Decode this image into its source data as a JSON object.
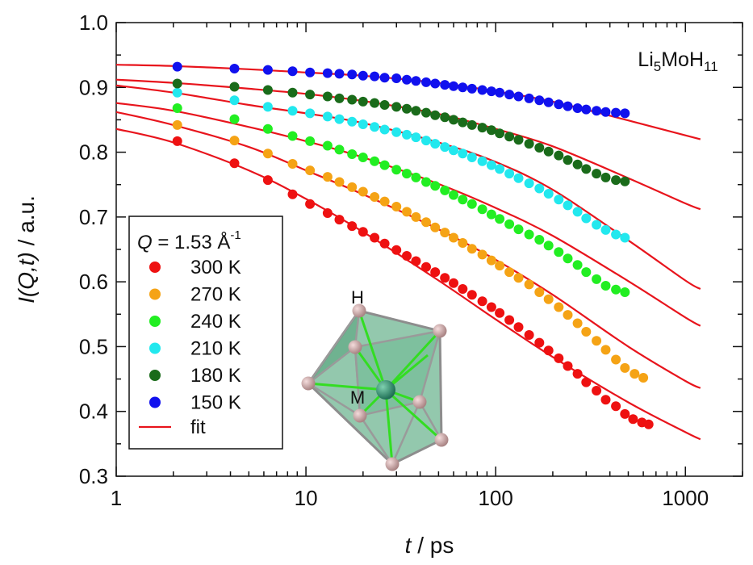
{
  "chart_data": {
    "type": "scatter",
    "xscale": "log",
    "xlim": [
      1,
      2000
    ],
    "ylim": [
      0.3,
      1.0
    ],
    "x_ticks": [
      "1",
      "10",
      "100",
      "1000"
    ],
    "y_ticks": [
      "0.3",
      "0.4",
      "0.5",
      "0.6",
      "0.7",
      "0.8",
      "0.9",
      "1.0"
    ],
    "xlabel": {
      "var": "t",
      "unit": " / ps"
    },
    "ylabel": {
      "var": "I(Q,t)",
      "unit": " / a.u."
    },
    "compound": {
      "prefix": "Li",
      "sub1": "5",
      "mid": "MoH",
      "sub2": "11"
    },
    "legend": {
      "q_var": "Q",
      "q_value": " = 1.53 Å",
      "q_exp": "-1",
      "fit_label": "fit",
      "fit_color": "#e8141c"
    },
    "inset_labels": {
      "top": "H",
      "center": "M"
    },
    "series": [
      {
        "name": "300 K",
        "color": "#ee1111",
        "points": [
          [
            2.1,
            0.817
          ],
          [
            4.2,
            0.783
          ],
          [
            6.3,
            0.757
          ],
          [
            8.5,
            0.735
          ],
          [
            10.5,
            0.72
          ],
          [
            13,
            0.706
          ],
          [
            15,
            0.696
          ],
          [
            17.5,
            0.686
          ],
          [
            20,
            0.677
          ],
          [
            23,
            0.668
          ],
          [
            26,
            0.659
          ],
          [
            30,
            0.649
          ],
          [
            34,
            0.64
          ],
          [
            38,
            0.632
          ],
          [
            43,
            0.623
          ],
          [
            48,
            0.615
          ],
          [
            54,
            0.606
          ],
          [
            60,
            0.598
          ],
          [
            67,
            0.589
          ],
          [
            75,
            0.58
          ],
          [
            85,
            0.57
          ],
          [
            95,
            0.561
          ],
          [
            105,
            0.552
          ],
          [
            118,
            0.541
          ],
          [
            132,
            0.53
          ],
          [
            150,
            0.518
          ],
          [
            170,
            0.506
          ],
          [
            190,
            0.494
          ],
          [
            215,
            0.482
          ],
          [
            240,
            0.47
          ],
          [
            270,
            0.458
          ],
          [
            300,
            0.445
          ],
          [
            340,
            0.432
          ],
          [
            380,
            0.418
          ],
          [
            430,
            0.408
          ],
          [
            480,
            0.396
          ],
          [
            530,
            0.388
          ],
          [
            590,
            0.383
          ],
          [
            640,
            0.38
          ]
        ]
      },
      {
        "name": "270 K",
        "color": "#f5a315",
        "points": [
          [
            2.1,
            0.842
          ],
          [
            4.2,
            0.818
          ],
          [
            6.3,
            0.798
          ],
          [
            8.5,
            0.782
          ],
          [
            10.5,
            0.772
          ],
          [
            13,
            0.762
          ],
          [
            15,
            0.754
          ],
          [
            17.5,
            0.746
          ],
          [
            20,
            0.739
          ],
          [
            23,
            0.731
          ],
          [
            26,
            0.724
          ],
          [
            30,
            0.716
          ],
          [
            34,
            0.708
          ],
          [
            38,
            0.7
          ],
          [
            43,
            0.692
          ],
          [
            48,
            0.684
          ],
          [
            54,
            0.676
          ],
          [
            60,
            0.668
          ],
          [
            67,
            0.66
          ],
          [
            75,
            0.651
          ],
          [
            85,
            0.642
          ],
          [
            95,
            0.633
          ],
          [
            105,
            0.625
          ],
          [
            118,
            0.615
          ],
          [
            132,
            0.606
          ],
          [
            150,
            0.596
          ],
          [
            170,
            0.584
          ],
          [
            190,
            0.573
          ],
          [
            215,
            0.561
          ],
          [
            240,
            0.549
          ],
          [
            270,
            0.536
          ],
          [
            300,
            0.523
          ],
          [
            340,
            0.509
          ],
          [
            380,
            0.495
          ],
          [
            430,
            0.48
          ],
          [
            480,
            0.467
          ],
          [
            540,
            0.458
          ],
          [
            600,
            0.452
          ]
        ]
      },
      {
        "name": "240 K",
        "color": "#22ee22",
        "points": [
          [
            2.1,
            0.868
          ],
          [
            4.2,
            0.851
          ],
          [
            6.3,
            0.836
          ],
          [
            8.5,
            0.825
          ],
          [
            10.5,
            0.817
          ],
          [
            13,
            0.81
          ],
          [
            15,
            0.804
          ],
          [
            17.5,
            0.797
          ],
          [
            20,
            0.792
          ],
          [
            23,
            0.786
          ],
          [
            26,
            0.78
          ],
          [
            30,
            0.773
          ],
          [
            34,
            0.767
          ],
          [
            38,
            0.761
          ],
          [
            43,
            0.754
          ],
          [
            48,
            0.748
          ],
          [
            54,
            0.741
          ],
          [
            60,
            0.734
          ],
          [
            67,
            0.727
          ],
          [
            75,
            0.72
          ],
          [
            85,
            0.712
          ],
          [
            95,
            0.704
          ],
          [
            105,
            0.697
          ],
          [
            118,
            0.689
          ],
          [
            132,
            0.681
          ],
          [
            150,
            0.673
          ],
          [
            170,
            0.665
          ],
          [
            190,
            0.656
          ],
          [
            215,
            0.646
          ],
          [
            240,
            0.636
          ],
          [
            270,
            0.626
          ],
          [
            300,
            0.615
          ],
          [
            340,
            0.604
          ],
          [
            380,
            0.594
          ],
          [
            430,
            0.588
          ],
          [
            480,
            0.584
          ]
        ]
      },
      {
        "name": "210 K",
        "color": "#22e8ee",
        "points": [
          [
            2.1,
            0.892
          ],
          [
            4.2,
            0.88
          ],
          [
            6.3,
            0.87
          ],
          [
            8.5,
            0.864
          ],
          [
            10.5,
            0.86
          ],
          [
            13,
            0.855
          ],
          [
            15,
            0.851
          ],
          [
            17.5,
            0.847
          ],
          [
            20,
            0.843
          ],
          [
            23,
            0.839
          ],
          [
            26,
            0.835
          ],
          [
            30,
            0.831
          ],
          [
            34,
            0.827
          ],
          [
            38,
            0.823
          ],
          [
            43,
            0.818
          ],
          [
            48,
            0.813
          ],
          [
            54,
            0.808
          ],
          [
            60,
            0.803
          ],
          [
            67,
            0.798
          ],
          [
            75,
            0.792
          ],
          [
            85,
            0.786
          ],
          [
            95,
            0.78
          ],
          [
            105,
            0.774
          ],
          [
            118,
            0.767
          ],
          [
            132,
            0.76
          ],
          [
            150,
            0.752
          ],
          [
            170,
            0.744
          ],
          [
            190,
            0.736
          ],
          [
            215,
            0.727
          ],
          [
            240,
            0.718
          ],
          [
            270,
            0.708
          ],
          [
            300,
            0.698
          ],
          [
            340,
            0.688
          ],
          [
            380,
            0.68
          ],
          [
            430,
            0.673
          ],
          [
            480,
            0.668
          ]
        ]
      },
      {
        "name": "180 K",
        "color": "#1a6b1a",
        "points": [
          [
            2.1,
            0.906
          ],
          [
            4.2,
            0.901
          ],
          [
            6.3,
            0.896
          ],
          [
            8.5,
            0.892
          ],
          [
            10.5,
            0.889
          ],
          [
            13,
            0.886
          ],
          [
            15,
            0.883
          ],
          [
            17.5,
            0.881
          ],
          [
            20,
            0.878
          ],
          [
            23,
            0.876
          ],
          [
            26,
            0.873
          ],
          [
            30,
            0.87
          ],
          [
            34,
            0.867
          ],
          [
            38,
            0.864
          ],
          [
            43,
            0.861
          ],
          [
            48,
            0.857
          ],
          [
            54,
            0.854
          ],
          [
            60,
            0.85
          ],
          [
            67,
            0.846
          ],
          [
            75,
            0.842
          ],
          [
            85,
            0.838
          ],
          [
            95,
            0.834
          ],
          [
            105,
            0.829
          ],
          [
            118,
            0.824
          ],
          [
            132,
            0.819
          ],
          [
            150,
            0.813
          ],
          [
            170,
            0.807
          ],
          [
            190,
            0.801
          ],
          [
            215,
            0.795
          ],
          [
            240,
            0.788
          ],
          [
            270,
            0.781
          ],
          [
            300,
            0.774
          ],
          [
            340,
            0.767
          ],
          [
            380,
            0.761
          ],
          [
            430,
            0.757
          ],
          [
            480,
            0.755
          ]
        ]
      },
      {
        "name": "150 K",
        "color": "#1111ee",
        "points": [
          [
            2.1,
            0.932
          ],
          [
            4.2,
            0.929
          ],
          [
            6.3,
            0.927
          ],
          [
            8.5,
            0.925
          ],
          [
            10.5,
            0.923
          ],
          [
            13,
            0.922
          ],
          [
            15,
            0.921
          ],
          [
            17.5,
            0.92
          ],
          [
            20,
            0.918
          ],
          [
            23,
            0.917
          ],
          [
            26,
            0.915
          ],
          [
            30,
            0.914
          ],
          [
            34,
            0.912
          ],
          [
            38,
            0.91
          ],
          [
            43,
            0.908
          ],
          [
            48,
            0.906
          ],
          [
            54,
            0.904
          ],
          [
            60,
            0.902
          ],
          [
            67,
            0.9
          ],
          [
            75,
            0.898
          ],
          [
            85,
            0.896
          ],
          [
            95,
            0.894
          ],
          [
            105,
            0.892
          ],
          [
            118,
            0.889
          ],
          [
            132,
            0.886
          ],
          [
            150,
            0.883
          ],
          [
            170,
            0.88
          ],
          [
            190,
            0.877
          ],
          [
            215,
            0.874
          ],
          [
            240,
            0.871
          ],
          [
            270,
            0.868
          ],
          [
            300,
            0.866
          ],
          [
            340,
            0.864
          ],
          [
            380,
            0.862
          ],
          [
            430,
            0.861
          ],
          [
            480,
            0.86
          ]
        ]
      }
    ],
    "fits": [
      {
        "series": "300 K",
        "points": [
          [
            1,
            0.836
          ],
          [
            2,
            0.815
          ],
          [
            5,
            0.772
          ],
          [
            10,
            0.728
          ],
          [
            20,
            0.677
          ],
          [
            50,
            0.602
          ],
          [
            100,
            0.542
          ],
          [
            200,
            0.484
          ],
          [
            500,
            0.414
          ],
          [
            1000,
            0.368
          ],
          [
            1200,
            0.357
          ]
        ]
      },
      {
        "series": "270 K",
        "points": [
          [
            1,
            0.862
          ],
          [
            2,
            0.842
          ],
          [
            5,
            0.808
          ],
          [
            10,
            0.772
          ],
          [
            20,
            0.735
          ],
          [
            50,
            0.681
          ],
          [
            100,
            0.634
          ],
          [
            200,
            0.58
          ],
          [
            500,
            0.5
          ],
          [
            1000,
            0.447
          ],
          [
            1200,
            0.436
          ]
        ]
      },
      {
        "series": "240 K",
        "points": [
          [
            1,
            0.876
          ],
          [
            2,
            0.864
          ],
          [
            5,
            0.839
          ],
          [
            10,
            0.817
          ],
          [
            20,
            0.792
          ],
          [
            50,
            0.751
          ],
          [
            100,
            0.714
          ],
          [
            200,
            0.671
          ],
          [
            500,
            0.601
          ],
          [
            1000,
            0.545
          ],
          [
            1200,
            0.532
          ]
        ]
      },
      {
        "series": "210 K",
        "points": [
          [
            1,
            0.903
          ],
          [
            2,
            0.892
          ],
          [
            5,
            0.873
          ],
          [
            10,
            0.86
          ],
          [
            20,
            0.845
          ],
          [
            50,
            0.815
          ],
          [
            100,
            0.785
          ],
          [
            200,
            0.742
          ],
          [
            500,
            0.664
          ],
          [
            1000,
            0.602
          ],
          [
            1200,
            0.589
          ]
        ]
      },
      {
        "series": "180 K",
        "points": [
          [
            1,
            0.912
          ],
          [
            2,
            0.907
          ],
          [
            5,
            0.898
          ],
          [
            10,
            0.89
          ],
          [
            20,
            0.879
          ],
          [
            50,
            0.859
          ],
          [
            100,
            0.836
          ],
          [
            200,
            0.809
          ],
          [
            500,
            0.76
          ],
          [
            1000,
            0.721
          ],
          [
            1200,
            0.712
          ]
        ]
      },
      {
        "series": "150 K",
        "points": [
          [
            1,
            0.935
          ],
          [
            2,
            0.933
          ],
          [
            5,
            0.928
          ],
          [
            10,
            0.923
          ],
          [
            20,
            0.918
          ],
          [
            50,
            0.907
          ],
          [
            100,
            0.894
          ],
          [
            200,
            0.878
          ],
          [
            500,
            0.849
          ],
          [
            1000,
            0.826
          ],
          [
            1200,
            0.82
          ]
        ]
      }
    ]
  }
}
